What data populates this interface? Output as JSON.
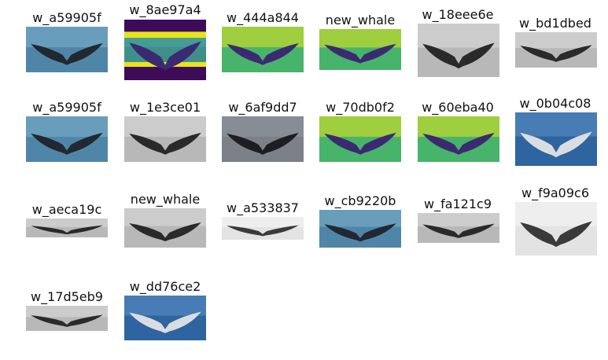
{
  "grid": {
    "items": [
      {
        "label": "w_a59905f",
        "style": "ocean"
      },
      {
        "label": "w_8ae97a4",
        "style": "viridis-band"
      },
      {
        "label": "w_444a844",
        "style": "viridis"
      },
      {
        "label": "new_whale",
        "style": "viridis"
      },
      {
        "label": "w_18eee6e",
        "style": "gray"
      },
      {
        "label": "w_bd1dbed",
        "style": "gray"
      },
      {
        "label": "w_a59905f",
        "style": "ocean"
      },
      {
        "label": "w_1e3ce01",
        "style": "gray"
      },
      {
        "label": "w_6af9dd7",
        "style": "slate"
      },
      {
        "label": "w_70db0f2",
        "style": "viridis"
      },
      {
        "label": "w_60eba40",
        "style": "viridis"
      },
      {
        "label": "w_0b04c08",
        "style": "ocean-white"
      },
      {
        "label": "w_aeca19c",
        "style": "gray"
      },
      {
        "label": "new_whale",
        "style": "gray"
      },
      {
        "label": "w_a533837",
        "style": "gray-white"
      },
      {
        "label": "w_cb9220b",
        "style": "ocean"
      },
      {
        "label": "w_fa121c9",
        "style": "gray"
      },
      {
        "label": "w_f9a09c6",
        "style": "gray-white"
      },
      {
        "label": "w_17d5eb9",
        "style": "gray"
      },
      {
        "label": "w_dd76ce2",
        "style": "ocean-white"
      }
    ]
  },
  "palette": {
    "ocean_bg": "#4f86a8",
    "viridis_bg": "#48b36a",
    "viridis_yellow": "#e8e419",
    "viridis_dark": "#3b2a72",
    "gray_bg": "#b8b8b8",
    "slate_bg": "#7c8088",
    "fluke_dark": "#222831"
  }
}
